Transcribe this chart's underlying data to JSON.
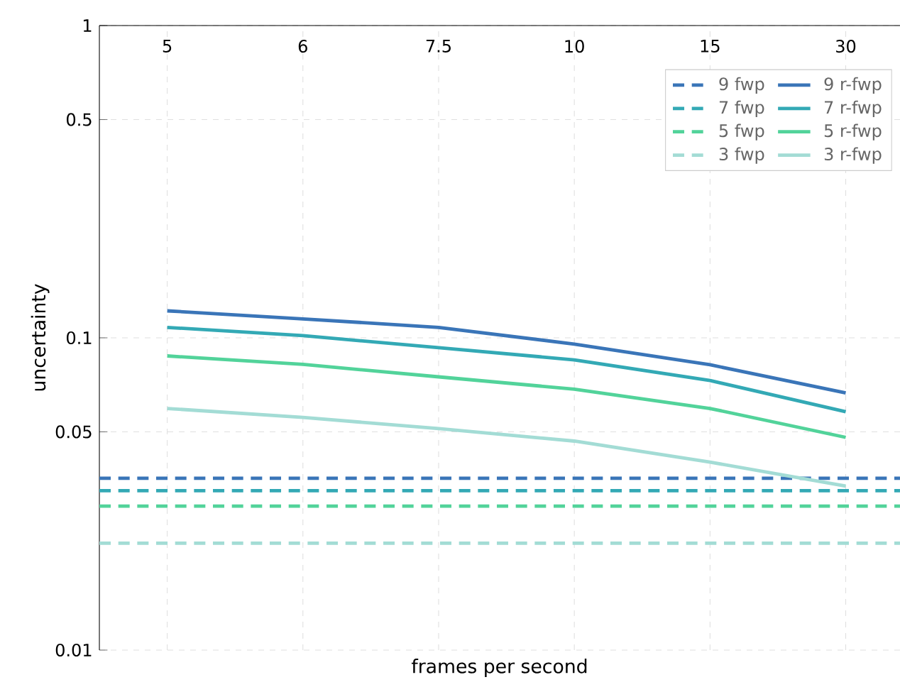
{
  "chart_data": {
    "type": "line",
    "xlabel": "frames per second",
    "ylabel": "uncertainty",
    "categories": [
      "5",
      "6",
      "7.5",
      "10",
      "15",
      "30"
    ],
    "series": [
      {
        "name": "9 r-fwp",
        "color": "#3a75b8",
        "values": [
          0.122,
          0.115,
          0.108,
          0.0955,
          0.082,
          0.0666
        ]
      },
      {
        "name": "7 r-fwp",
        "color": "#33a9b5",
        "values": [
          0.108,
          0.1016,
          0.093,
          0.085,
          0.073,
          0.058
        ]
      },
      {
        "name": "5 r-fwp",
        "color": "#52d39a",
        "values": [
          0.0875,
          0.0822,
          0.075,
          0.0685,
          0.0594,
          0.048
        ]
      },
      {
        "name": "3 r-fwp",
        "color": "#a3dcd5",
        "values": [
          0.0594,
          0.0556,
          0.0512,
          0.0467,
          0.04,
          0.0335
        ]
      }
    ],
    "ref_lines": [
      {
        "axis": "y",
        "value": 0.0355,
        "label": "9 fwp",
        "color": "#3a75b8",
        "line_style": "dashed"
      },
      {
        "axis": "y",
        "value": 0.0324,
        "label": "7 fwp",
        "color": "#33a9b5",
        "line_style": "dashed"
      },
      {
        "axis": "y",
        "value": 0.0289,
        "label": "5 fwp",
        "color": "#52d39a",
        "line_style": "dashed"
      },
      {
        "axis": "y",
        "value": 0.022,
        "label": "3 fwp",
        "color": "#a3dcd5",
        "line_style": "dashed"
      }
    ],
    "log": "y",
    "ylim": [
      0.01,
      1
    ],
    "yticks": [
      0.01,
      0.05,
      0.1,
      0.5,
      1
    ],
    "grid": true,
    "legend": "top right",
    "marker": "none",
    "line_style": "solid"
  }
}
